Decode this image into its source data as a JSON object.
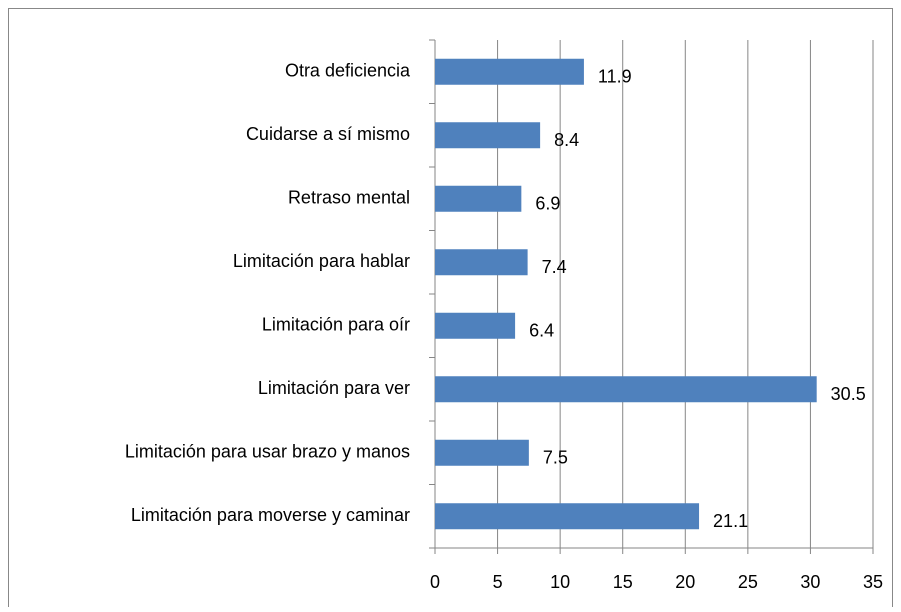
{
  "chart_data": {
    "type": "bar",
    "orientation": "horizontal",
    "categories": [
      "Otra deficiencia",
      "Cuidarse a sí mismo",
      "Retraso mental",
      "Limitación para hablar",
      "Limitación para oír",
      "Limitación para ver",
      "Limitación para usar brazo y manos",
      "Limitación para moverse y caminar"
    ],
    "values": [
      11.9,
      8.4,
      6.9,
      7.4,
      6.4,
      30.5,
      7.5,
      21.1
    ],
    "color": "#4f81bd",
    "xlim": [
      0,
      35
    ],
    "xticks": [
      0,
      5,
      10,
      15,
      20,
      25,
      30,
      35
    ],
    "grid": true
  }
}
